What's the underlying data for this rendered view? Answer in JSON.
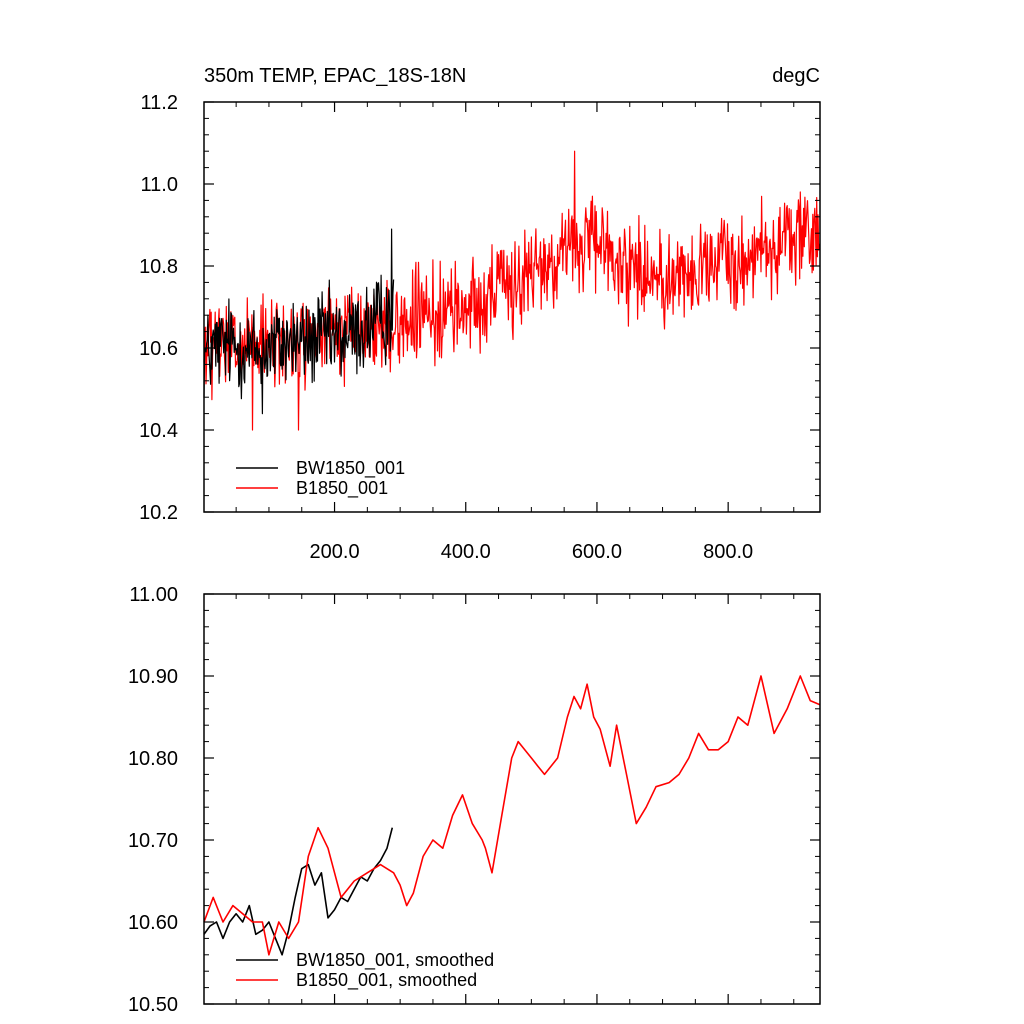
{
  "chart_data": [
    {
      "type": "line",
      "title": "350m TEMP, EPAC_18S-18N",
      "units_label": "degC",
      "xlabel": "",
      "ylabel": "",
      "xlim": [
        1,
        940
      ],
      "ylim": [
        10.2,
        11.2
      ],
      "yticks": [
        "10.2",
        "10.4",
        "10.6",
        "10.8",
        "11.0",
        "11.2"
      ],
      "xticks": [
        "200.0",
        "400.0",
        "600.0",
        "800.0"
      ],
      "legend_position": "bottom-left",
      "grid": false,
      "series": [
        {
          "name": "BW1850_001",
          "color": "#000000",
          "x_range": [
            1,
            290
          ],
          "x": [
            1,
            20,
            40,
            60,
            80,
            100,
            120,
            140,
            160,
            180,
            200,
            220,
            240,
            260,
            280,
            290
          ],
          "values": [
            10.58,
            10.6,
            10.61,
            10.6,
            10.59,
            10.6,
            10.61,
            10.62,
            10.61,
            10.63,
            10.62,
            10.63,
            10.64,
            10.66,
            10.68,
            10.7
          ],
          "max": 10.89,
          "min": 10.44
        },
        {
          "name": "B1850_001",
          "color": "#ff0000",
          "x_range": [
            1,
            940
          ],
          "x": [
            1,
            50,
            100,
            150,
            200,
            250,
            300,
            350,
            400,
            450,
            500,
            550,
            600,
            650,
            700,
            750,
            800,
            850,
            900,
            940
          ],
          "values": [
            10.6,
            10.6,
            10.6,
            10.62,
            10.64,
            10.64,
            10.66,
            10.68,
            10.7,
            10.74,
            10.78,
            10.84,
            10.85,
            10.8,
            10.77,
            10.78,
            10.81,
            10.84,
            10.87,
            10.86
          ],
          "max": 11.08,
          "min": 10.4
        }
      ]
    },
    {
      "type": "line",
      "title": "",
      "xlabel": "",
      "ylabel": "",
      "xlim": [
        1,
        940
      ],
      "ylim": [
        10.5,
        11.0
      ],
      "yticks": [
        "10.50",
        "10.60",
        "10.70",
        "10.80",
        "10.90",
        "11.00"
      ],
      "legend_position": "bottom-left",
      "grid": false,
      "series": [
        {
          "name": "BW1850_001, smoothed",
          "color": "#000000",
          "x": [
            1,
            10,
            20,
            30,
            40,
            50,
            60,
            70,
            80,
            90,
            100,
            110,
            120,
            130,
            140,
            150,
            160,
            170,
            180,
            190,
            200,
            210,
            220,
            230,
            240,
            250,
            260,
            270,
            280,
            288
          ],
          "values": [
            10.585,
            10.595,
            10.6,
            10.58,
            10.6,
            10.61,
            10.6,
            10.62,
            10.585,
            10.59,
            10.6,
            10.58,
            10.56,
            10.59,
            10.63,
            10.665,
            10.67,
            10.645,
            10.66,
            10.605,
            10.615,
            10.63,
            10.625,
            10.64,
            10.655,
            10.65,
            10.665,
            10.675,
            10.69,
            10.715
          ]
        },
        {
          "name": "B1850_001, smoothed",
          "color": "#ff0000",
          "x": [
            1,
            15,
            30,
            45,
            60,
            75,
            90,
            100,
            115,
            130,
            145,
            160,
            175,
            190,
            210,
            230,
            250,
            270,
            290,
            300,
            310,
            320,
            335,
            350,
            365,
            380,
            395,
            410,
            425,
            430,
            440,
            455,
            470,
            480,
            500,
            510,
            520,
            540,
            555,
            565,
            575,
            585,
            595,
            605,
            620,
            630,
            645,
            660,
            675,
            690,
            710,
            725,
            740,
            755,
            770,
            785,
            800,
            815,
            830,
            850,
            870,
            890,
            910,
            925,
            940
          ],
          "values": [
            10.6,
            10.63,
            10.6,
            10.62,
            10.61,
            10.6,
            10.6,
            10.56,
            10.6,
            10.58,
            10.6,
            10.68,
            10.715,
            10.69,
            10.63,
            10.65,
            10.66,
            10.67,
            10.66,
            10.645,
            10.62,
            10.635,
            10.68,
            10.7,
            10.69,
            10.73,
            10.755,
            10.72,
            10.7,
            10.69,
            10.66,
            10.73,
            10.8,
            10.82,
            10.8,
            10.79,
            10.78,
            10.8,
            10.85,
            10.875,
            10.86,
            10.89,
            10.85,
            10.835,
            10.79,
            10.84,
            10.78,
            10.72,
            10.74,
            10.765,
            10.77,
            10.78,
            10.8,
            10.83,
            10.81,
            10.81,
            10.82,
            10.85,
            10.84,
            10.9,
            10.83,
            10.86,
            10.9,
            10.87,
            10.865
          ]
        }
      ]
    }
  ]
}
